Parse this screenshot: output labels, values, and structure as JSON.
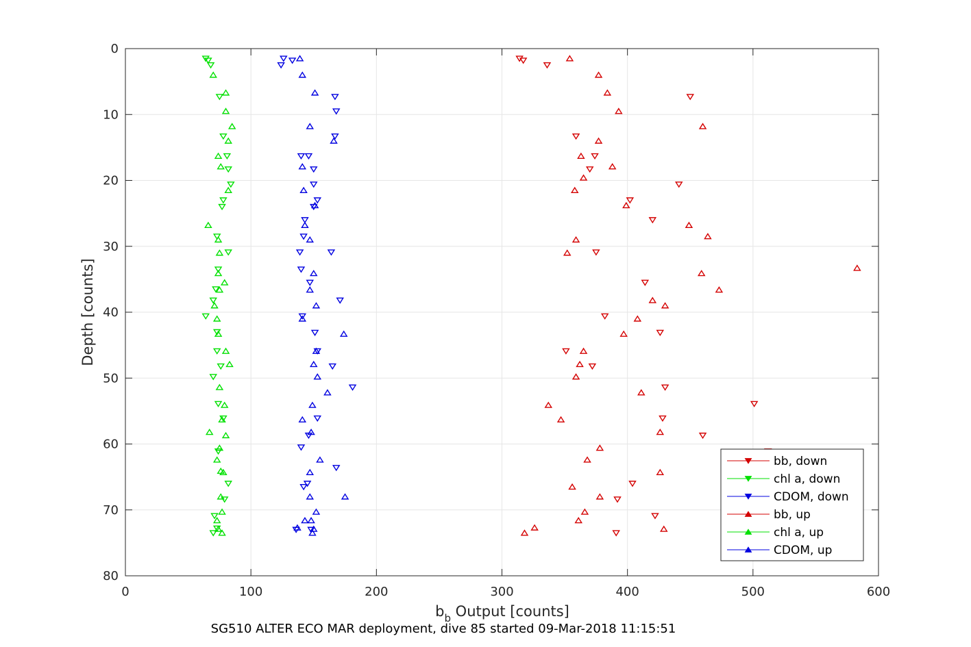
{
  "chart_data": {
    "type": "scatter",
    "xlabel_main": "b",
    "xlabel_sub": "b",
    "xlabel_rest": " Output [counts]",
    "ylabel": "Depth [counts]",
    "subtitle": "SG510 ALTER ECO MAR deployment, dive 85 started 09-Mar-2018 11:15:51",
    "xlim": [
      0,
      600
    ],
    "ylim": [
      0,
      80
    ],
    "y_reversed": true,
    "grid": true,
    "legend_position": "bottom-right",
    "x_ticks": [
      "0",
      "100",
      "200",
      "300",
      "400",
      "500",
      "600"
    ],
    "y_ticks": [
      "0",
      "10",
      "20",
      "30",
      "40",
      "50",
      "60",
      "70",
      "80"
    ],
    "series": [
      {
        "name": "bb, down",
        "marker": "triangle-down",
        "color": "#d40000",
        "points": [
          [
            314,
            1.5
          ],
          [
            317,
            1.8
          ],
          [
            336,
            2.5
          ],
          [
            450,
            7.3
          ],
          [
            359,
            13.3
          ],
          [
            374,
            16.3
          ],
          [
            370,
            18.3
          ],
          [
            441,
            20.6
          ],
          [
            402,
            23
          ],
          [
            420,
            26
          ],
          [
            375,
            30.9
          ],
          [
            414,
            35.5
          ],
          [
            382,
            40.6
          ],
          [
            426,
            43.1
          ],
          [
            351,
            45.9
          ],
          [
            372,
            48.2
          ],
          [
            430,
            51.4
          ],
          [
            501,
            53.9
          ],
          [
            428,
            56.1
          ],
          [
            460,
            58.7
          ],
          [
            512,
            61.1
          ],
          [
            404,
            66
          ],
          [
            392,
            68.4
          ],
          [
            422,
            70.9
          ],
          [
            391,
            73.5
          ]
        ]
      },
      {
        "name": "chl a, down",
        "marker": "triangle-down",
        "color": "#00e000",
        "points": [
          [
            64,
            1.5
          ],
          [
            66,
            1.8
          ],
          [
            68,
            2.5
          ],
          [
            75,
            7.3
          ],
          [
            78,
            13.3
          ],
          [
            81,
            16.3
          ],
          [
            82,
            18.3
          ],
          [
            84,
            20.6
          ],
          [
            78,
            23
          ],
          [
            77,
            24
          ],
          [
            73,
            28.5
          ],
          [
            82,
            30.9
          ],
          [
            74,
            33.5
          ],
          [
            72,
            36.5
          ],
          [
            70,
            38.2
          ],
          [
            64,
            40.6
          ],
          [
            73,
            43
          ],
          [
            73,
            45.9
          ],
          [
            76,
            48.2
          ],
          [
            70,
            49.8
          ],
          [
            74,
            53.9
          ],
          [
            78,
            56.1
          ],
          [
            74,
            61.1
          ],
          [
            82,
            66
          ],
          [
            79,
            68.4
          ],
          [
            71,
            70.9
          ],
          [
            73,
            72.8
          ],
          [
            70,
            73.5
          ]
        ]
      },
      {
        "name": "CDOM, down",
        "marker": "triangle-down",
        "color": "#0000e0",
        "points": [
          [
            126,
            1.5
          ],
          [
            133,
            1.8
          ],
          [
            124,
            2.5
          ],
          [
            167,
            7.3
          ],
          [
            168,
            9.5
          ],
          [
            167,
            13.3
          ],
          [
            146,
            16.3
          ],
          [
            140,
            16.3
          ],
          [
            150,
            18.3
          ],
          [
            150,
            20.6
          ],
          [
            153,
            23
          ],
          [
            150,
            24
          ],
          [
            143,
            26
          ],
          [
            142,
            28.5
          ],
          [
            164,
            30.9
          ],
          [
            139,
            30.9
          ],
          [
            140,
            33.5
          ],
          [
            147,
            35.5
          ],
          [
            171,
            38.2
          ],
          [
            141,
            40.6
          ],
          [
            151,
            43.1
          ],
          [
            153,
            45.9
          ],
          [
            165,
            48.2
          ],
          [
            181,
            51.4
          ],
          [
            153,
            56.1
          ],
          [
            146,
            58.7
          ],
          [
            140,
            60.5
          ],
          [
            168,
            63.6
          ],
          [
            145,
            66
          ],
          [
            142,
            66.5
          ],
          [
            148,
            73
          ],
          [
            136,
            73
          ]
        ]
      },
      {
        "name": "bb, up",
        "marker": "triangle-up",
        "color": "#d40000",
        "points": [
          [
            354,
            1.5
          ],
          [
            377,
            4
          ],
          [
            384,
            6.7
          ],
          [
            393,
            9.5
          ],
          [
            460,
            11.8
          ],
          [
            377,
            14
          ],
          [
            363,
            16.3
          ],
          [
            388,
            17.9
          ],
          [
            365,
            19.6
          ],
          [
            358,
            21.5
          ],
          [
            399,
            23.8
          ],
          [
            449,
            26.8
          ],
          [
            464,
            28.5
          ],
          [
            359,
            29
          ],
          [
            352,
            31
          ],
          [
            583,
            33.3
          ],
          [
            459,
            34.1
          ],
          [
            420,
            38.2
          ],
          [
            473,
            36.6
          ],
          [
            430,
            39
          ],
          [
            408,
            41
          ],
          [
            397,
            43.3
          ],
          [
            365,
            45.9
          ],
          [
            362,
            47.9
          ],
          [
            359,
            49.8
          ],
          [
            411,
            52.2
          ],
          [
            337,
            54.1
          ],
          [
            347,
            56.3
          ],
          [
            426,
            58.2
          ],
          [
            378,
            60.6
          ],
          [
            368,
            62.4
          ],
          [
            426,
            64.3
          ],
          [
            356,
            66.5
          ],
          [
            378,
            68
          ],
          [
            366,
            70.3
          ],
          [
            361,
            71.6
          ],
          [
            429,
            72.9
          ],
          [
            326,
            72.7
          ],
          [
            318,
            73.5
          ]
        ]
      },
      {
        "name": "chl a, up",
        "marker": "triangle-up",
        "color": "#00e000",
        "points": [
          [
            70,
            4
          ],
          [
            80,
            6.7
          ],
          [
            80,
            9.5
          ],
          [
            85,
            11.8
          ],
          [
            82,
            14
          ],
          [
            74,
            16.3
          ],
          [
            76,
            17.9
          ],
          [
            82,
            21.5
          ],
          [
            66,
            26.8
          ],
          [
            74,
            29
          ],
          [
            75,
            31
          ],
          [
            74,
            34.1
          ],
          [
            79,
            35.5
          ],
          [
            75,
            36.6
          ],
          [
            71,
            39
          ],
          [
            73,
            41
          ],
          [
            74,
            43.3
          ],
          [
            80,
            45.9
          ],
          [
            83,
            47.9
          ],
          [
            75,
            51.4
          ],
          [
            79,
            54.1
          ],
          [
            77,
            56.3
          ],
          [
            67,
            58.2
          ],
          [
            80,
            58.7
          ],
          [
            75,
            60.6
          ],
          [
            73,
            62.4
          ],
          [
            78,
            64.3
          ],
          [
            76,
            64.1
          ],
          [
            76,
            68
          ],
          [
            77,
            70.3
          ],
          [
            73,
            71.6
          ],
          [
            74,
            72.9
          ],
          [
            77,
            73.5
          ]
        ]
      },
      {
        "name": "CDOM, up",
        "marker": "triangle-up",
        "color": "#0000e0",
        "points": [
          [
            139,
            1.5
          ],
          [
            141,
            4
          ],
          [
            151,
            6.7
          ],
          [
            147,
            11.8
          ],
          [
            166,
            14
          ],
          [
            141,
            17.9
          ],
          [
            142,
            21.5
          ],
          [
            151,
            23.8
          ],
          [
            143,
            26.8
          ],
          [
            147,
            29
          ],
          [
            150,
            34.1
          ],
          [
            147,
            36.6
          ],
          [
            152,
            39
          ],
          [
            141,
            41
          ],
          [
            174,
            43.3
          ],
          [
            152,
            45.9
          ],
          [
            150,
            47.9
          ],
          [
            153,
            49.8
          ],
          [
            161,
            52.2
          ],
          [
            149,
            54.1
          ],
          [
            141,
            56.3
          ],
          [
            148,
            58.2
          ],
          [
            155,
            62.4
          ],
          [
            147,
            64.3
          ],
          [
            147,
            68
          ],
          [
            175,
            68
          ],
          [
            152,
            70.3
          ],
          [
            148,
            71.6
          ],
          [
            143,
            71.6
          ],
          [
            137,
            72.7
          ],
          [
            150,
            72.9
          ],
          [
            149,
            73.5
          ]
        ]
      }
    ]
  }
}
